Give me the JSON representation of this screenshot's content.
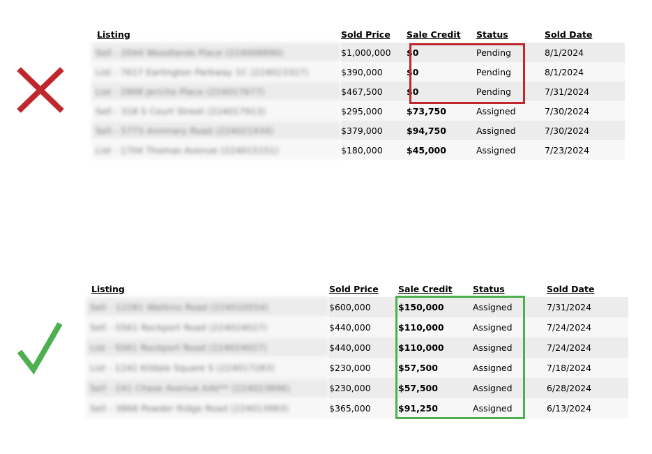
{
  "colors": {
    "wrong": "#c0272d",
    "right": "#4caf50",
    "row_odd": "#ececec",
    "row_even": "#f7f7f7"
  },
  "icons": {
    "wrong": "x-icon",
    "right": "checkmark-icon"
  },
  "headers": {
    "listing": "Listing",
    "sold_price": "Sold Price",
    "sale_credit": "Sale Credit",
    "status": "Status",
    "sold_date": "Sold Date"
  },
  "top_table": {
    "rows": [
      {
        "listing": "Sell - 2044 Woodlands Place (224008890)",
        "sold_price": "$1,000,000",
        "sale_credit": "$0",
        "status": "Pending",
        "sold_date": "8/1/2024"
      },
      {
        "listing": "List - 7617 Earlington Parkway 1C (224023327)",
        "sold_price": "$390,000",
        "sale_credit": "$0",
        "status": "Pending",
        "sold_date": "8/1/2024"
      },
      {
        "listing": "List - 2908 Jericho Place (224017677)",
        "sold_price": "$467,500",
        "sale_credit": "$0",
        "status": "Pending",
        "sold_date": "7/31/2024"
      },
      {
        "listing": "Sell - 318 S Court Street (224017913)",
        "sold_price": "$295,000",
        "sale_credit": "$73,750",
        "status": "Assigned",
        "sold_date": "7/30/2024"
      },
      {
        "listing": "Sell - 5773 Annmary Road (224021934)",
        "sold_price": "$379,000",
        "sale_credit": "$94,750",
        "status": "Assigned",
        "sold_date": "7/30/2024"
      },
      {
        "listing": "List - 1704 Thomas Avenue (224015151)",
        "sold_price": "$180,000",
        "sale_credit": "$45,000",
        "status": "Assigned",
        "sold_date": "7/23/2024"
      }
    ]
  },
  "bottom_table": {
    "rows": [
      {
        "listing": "Sell - 12281 Watkins Road (224010554)",
        "sold_price": "$600,000",
        "sale_credit": "$150,000",
        "status": "Assigned",
        "sold_date": "7/31/2024"
      },
      {
        "listing": "Sell - 5561 Rockport Road (224024027)",
        "sold_price": "$440,000",
        "sale_credit": "$110,000",
        "status": "Assigned",
        "sold_date": "7/24/2024"
      },
      {
        "listing": "List - 5561 Rockport Road (224024027)",
        "sold_price": "$440,000",
        "sale_credit": "$110,000",
        "status": "Assigned",
        "sold_date": "7/24/2024"
      },
      {
        "listing": "List - 1242 Kildale Square S (224017283)",
        "sold_price": "$230,000",
        "sale_credit": "$57,500",
        "status": "Assigned",
        "sold_date": "7/18/2024"
      },
      {
        "listing": "Sell - 241 Chase Avenue AAV** (224023896)",
        "sold_price": "$230,000",
        "sale_credit": "$57,500",
        "status": "Assigned",
        "sold_date": "6/28/2024"
      },
      {
        "listing": "Sell - 3868 Powder Ridge Road (224013983)",
        "sold_price": "$365,000",
        "sale_credit": "$91,250",
        "status": "Assigned",
        "sold_date": "6/13/2024"
      }
    ]
  }
}
